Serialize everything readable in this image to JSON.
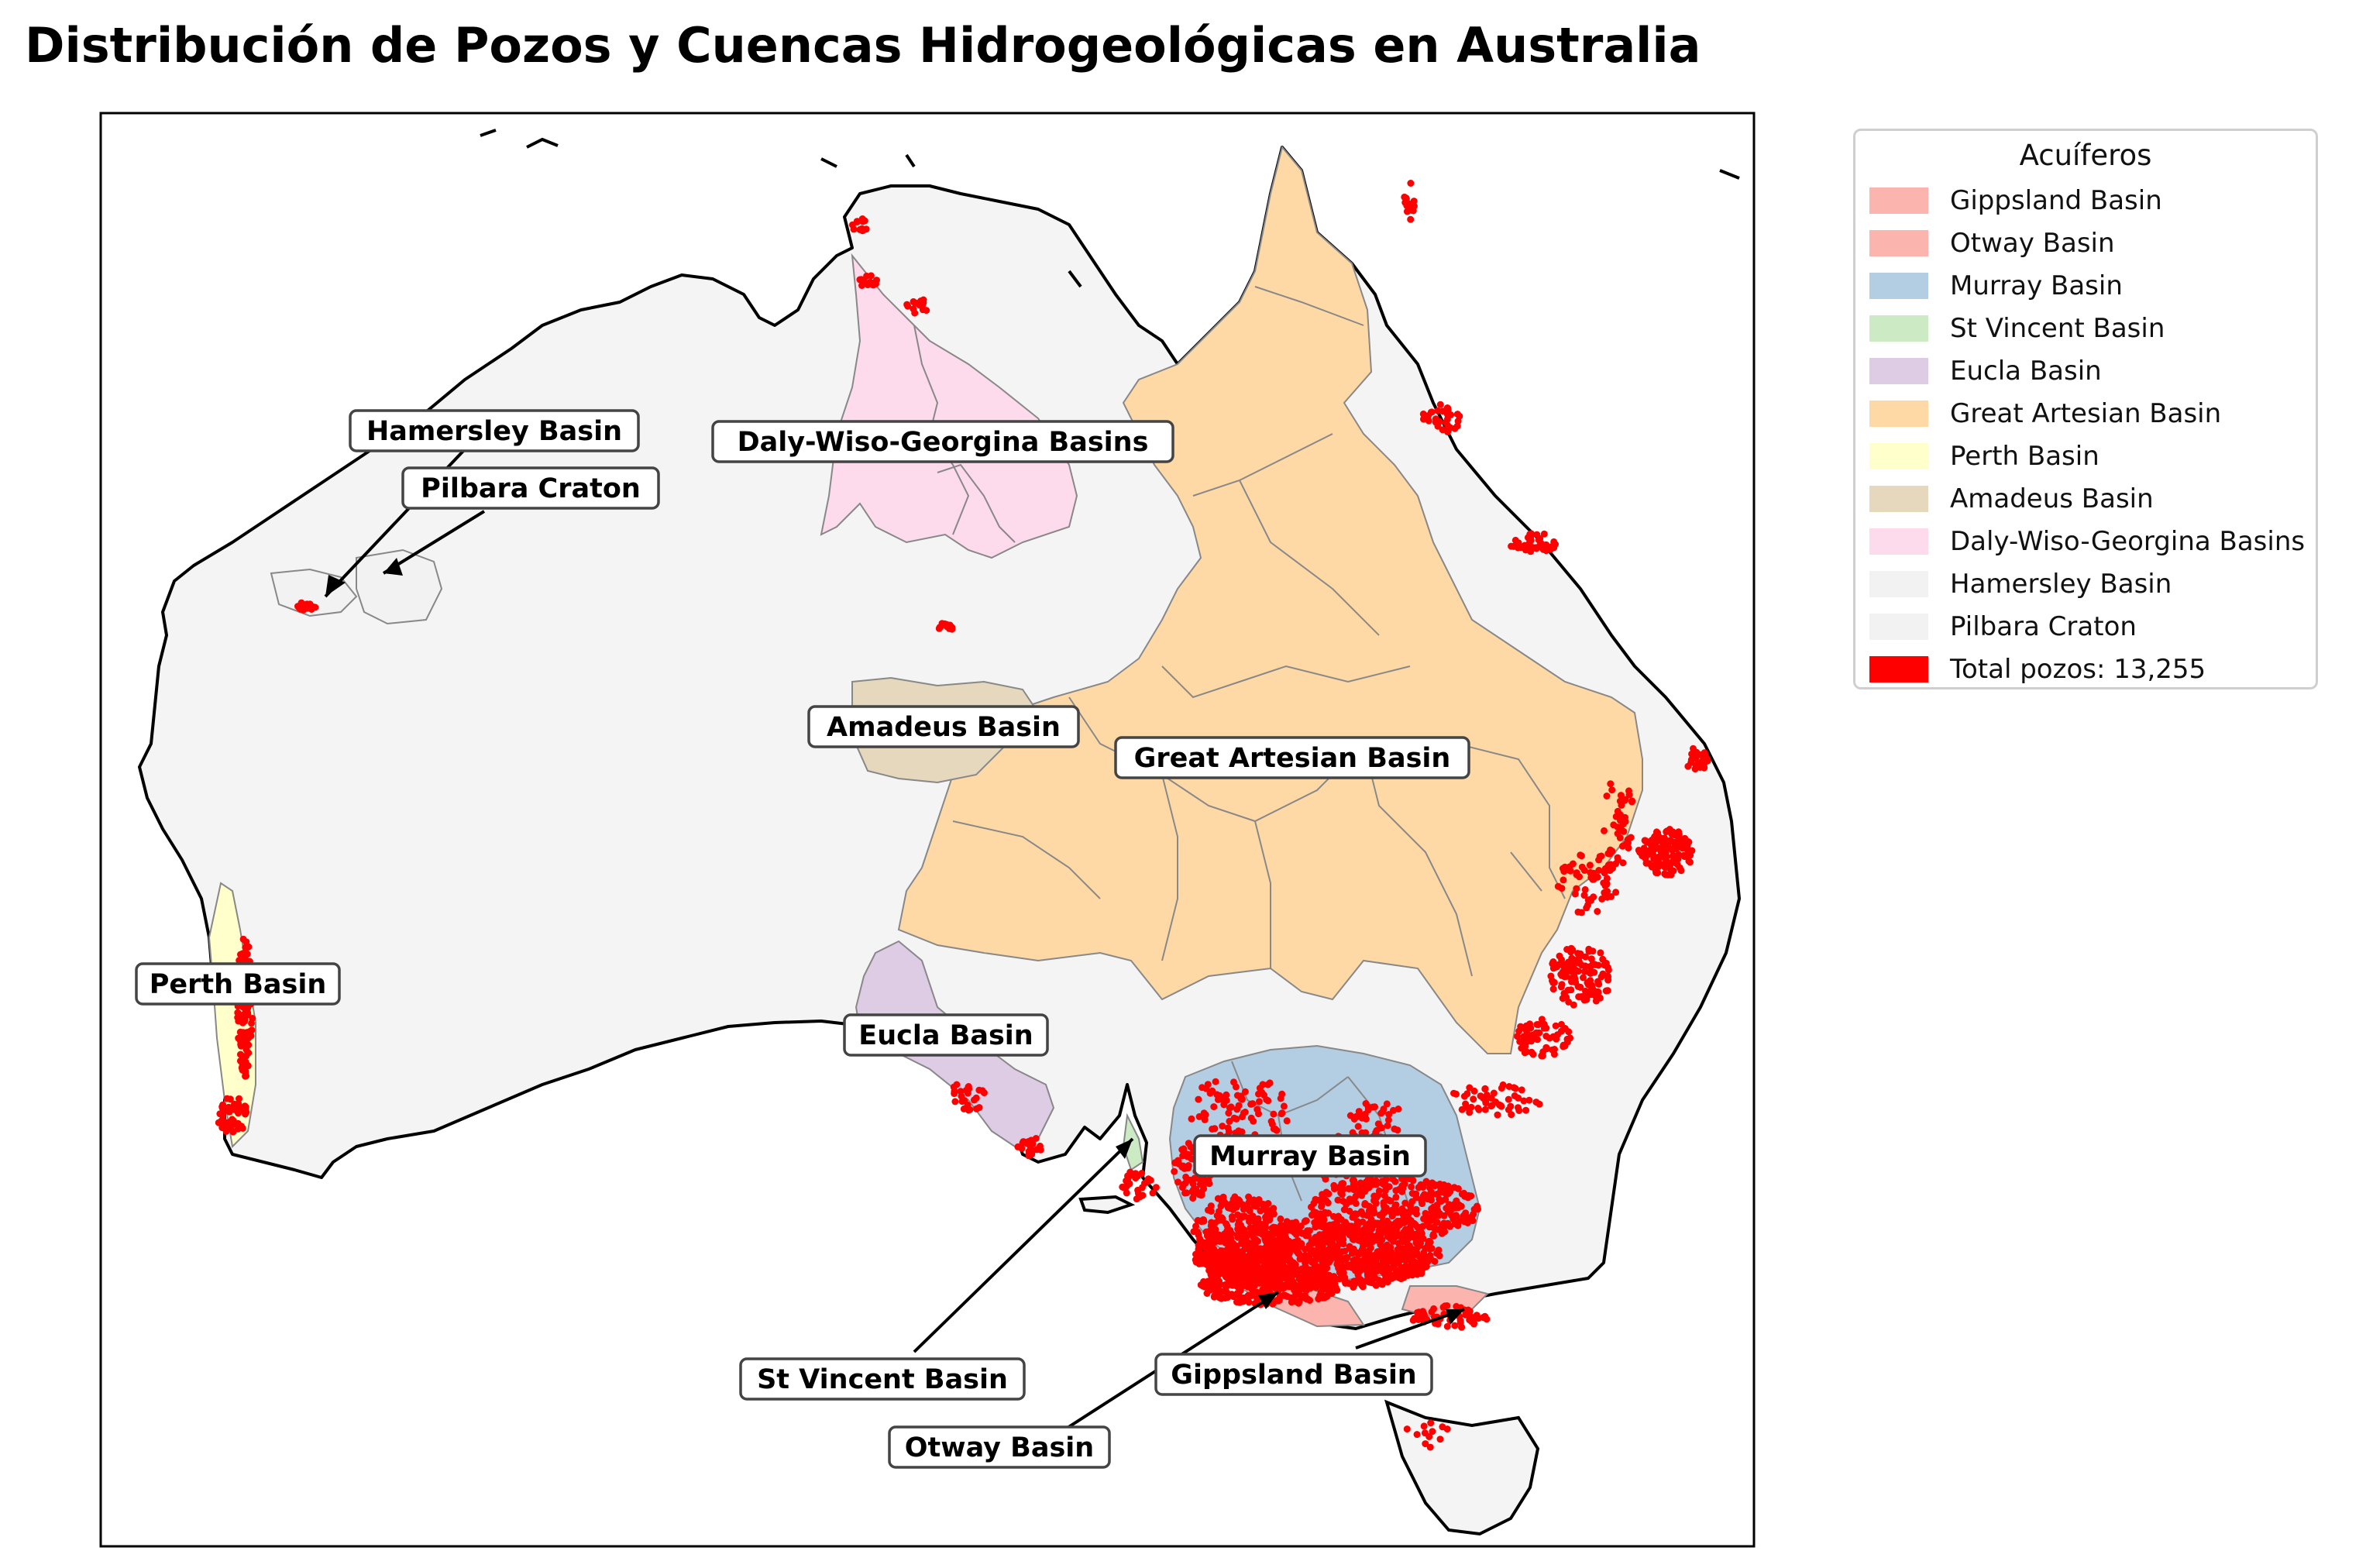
{
  "title": "Distribución de Pozos y Cuencas Hidrogeológicas en Australia",
  "legend": {
    "title": "Acuíferos",
    "items": [
      {
        "label": "Gippsland Basin",
        "color": "#fbb4ae"
      },
      {
        "label": "Otway Basin",
        "color": "#fbb4ae"
      },
      {
        "label": "Murray Basin",
        "color": "#b3cde3"
      },
      {
        "label": "St Vincent Basin",
        "color": "#ccebc5"
      },
      {
        "label": "Eucla Basin",
        "color": "#decbe4"
      },
      {
        "label": "Great Artesian Basin",
        "color": "#fed9a6"
      },
      {
        "label": "Perth Basin",
        "color": "#ffffcc"
      },
      {
        "label": "Amadeus Basin",
        "color": "#e5d8bd"
      },
      {
        "label": "Daly-Wiso-Georgina Basins",
        "color": "#fddaec"
      },
      {
        "label": "Hamersley Basin",
        "color": "#f2f2f2"
      },
      {
        "label": "Pilbara Craton",
        "color": "#f2f2f2"
      },
      {
        "label": "Total pozos: 13,255",
        "color": "#ff0000"
      }
    ]
  },
  "labels": {
    "hamersley": "Hamersley Basin",
    "pilbara": "Pilbara Craton",
    "daly": "Daly-Wiso-Georgina Basins",
    "amadeus": "Amadeus Basin",
    "great_artesian": "Great Artesian Basin",
    "perth": "Perth Basin",
    "eucla": "Eucla Basin",
    "murray": "Murray Basin",
    "st_vincent": "St Vincent Basin",
    "otway": "Otway Basin",
    "gippsland": "Gippsland Basin"
  },
  "colors": {
    "land": "#f4f4f4",
    "coast": "#000000",
    "wells": "#ff0000",
    "basin_border": "#888888"
  },
  "icons": {
    "well": "red-dot"
  }
}
